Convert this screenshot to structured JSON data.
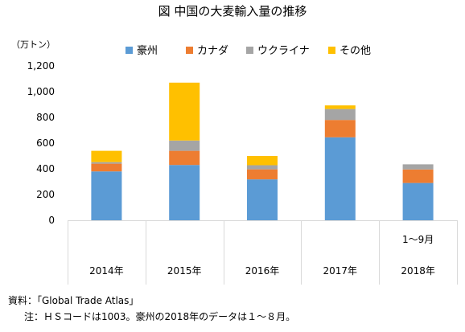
{
  "chart_data": {
    "type": "bar",
    "stacked": true,
    "title": "図 中国の大麦輸入量の推移",
    "unit_label": "（万トン）",
    "categories": [
      "2014年",
      "2015年",
      "2016年",
      "2017年",
      "2018年"
    ],
    "category_notes": [
      "",
      "",
      "",
      "",
      "1〜9月"
    ],
    "series": [
      {
        "name": "豪州",
        "color": "#5b9bd5",
        "values": [
          380,
          430,
          318,
          645,
          290
        ]
      },
      {
        "name": "カナダ",
        "color": "#ed7d31",
        "values": [
          60,
          110,
          78,
          135,
          105
        ]
      },
      {
        "name": "ウクライナ",
        "color": "#a5a5a5",
        "values": [
          12,
          80,
          32,
          85,
          40
        ]
      },
      {
        "name": "その他",
        "color": "#ffc000",
        "values": [
          88,
          450,
          72,
          28,
          0
        ]
      }
    ],
    "ylim": [
      0,
      1200
    ],
    "yticks": [
      0,
      200,
      400,
      600,
      800,
      1000,
      1200
    ],
    "ytick_labels": [
      "0",
      "200",
      "400",
      "600",
      "800",
      "1,000",
      "1,200"
    ],
    "legend_position": "top",
    "grid": false
  },
  "notes": {
    "source": "資料：「Global Trade Atlas」",
    "footnote": "注：ＨＳコードは1003。豪州の2018年のデータは１〜８月。"
  }
}
